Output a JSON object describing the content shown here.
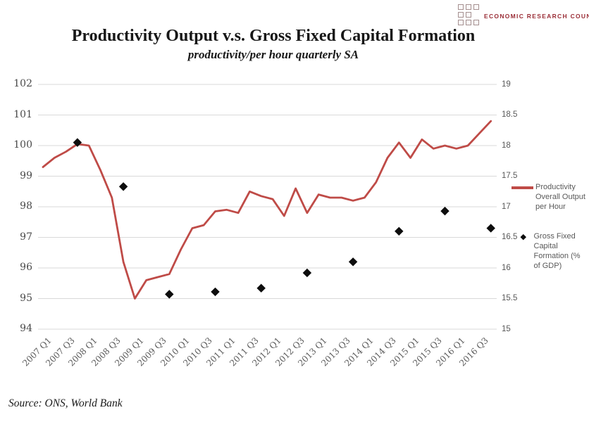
{
  "logo": {
    "text": "ECONOMIC RESEARCH COUNCIL",
    "brand_color": "#9a2d36"
  },
  "title": "Productivity Output v.s. Gross Fixed Capital Formation",
  "subtitle": "productivity/per hour quarterly SA",
  "source": "Source: ONS, World Bank",
  "legend": {
    "items": [
      {
        "label": "Productivity Overall Output per Hour",
        "swatch": "red-line"
      },
      {
        "label": "Gross Fixed Capital Formation (% of GDP)",
        "swatch": "black-diamond"
      }
    ]
  },
  "chart_data": {
    "type": "line",
    "title": "Productivity Output v.s. Gross Fixed Capital Formation",
    "subtitle": "productivity/per hour quarterly SA",
    "grid": true,
    "legend_position": "right",
    "x_categories": [
      "2007 Q1",
      "2007 Q2",
      "2007 Q3",
      "2007 Q4",
      "2008 Q1",
      "2008 Q2",
      "2008 Q3",
      "2008 Q4",
      "2009 Q1",
      "2009 Q2",
      "2009 Q3",
      "2009 Q4",
      "2010 Q1",
      "2010 Q2",
      "2010 Q3",
      "2010 Q4",
      "2011 Q1",
      "2011 Q2",
      "2011 Q3",
      "2011 Q4",
      "2012 Q1",
      "2012 Q2",
      "2012 Q3",
      "2012 Q4",
      "2013 Q1",
      "2013 Q2",
      "2013 Q3",
      "2013 Q4",
      "2014 Q1",
      "2014 Q2",
      "2014 Q3",
      "2014 Q4",
      "2015 Q1",
      "2015 Q2",
      "2015 Q3",
      "2015 Q4",
      "2016 Q1",
      "2016 Q2",
      "2016 Q3",
      "2016 Q4"
    ],
    "x_tick_labels": [
      "2007 Q1",
      "2007 Q3",
      "2008 Q1",
      "2008 Q3",
      "2009 Q1",
      "2009 Q3",
      "2010 Q1",
      "2010 Q3",
      "2011 Q1",
      "2011 Q3",
      "2012 Q1",
      "2012 Q3",
      "2013 Q1",
      "2013 Q3",
      "2014 Q1",
      "2014 Q3",
      "2015 Q1",
      "2015 Q3",
      "2016 Q1",
      "2016 Q3"
    ],
    "left_axis": {
      "min": 94,
      "max": 102,
      "step": 1,
      "ticks": [
        "102",
        "101",
        "100",
        "99",
        "98",
        "97",
        "96",
        "95",
        "94"
      ]
    },
    "right_axis": {
      "min": 15,
      "max": 19,
      "step": 0.5,
      "ticks": [
        "19",
        "18.5",
        "18",
        "17.5",
        "17",
        "16.5",
        "16",
        "15.5",
        "15"
      ]
    },
    "series": [
      {
        "name": "Productivity Overall Output per Hour",
        "type": "line",
        "axis": "left",
        "color": "#bf4b47",
        "values": [
          99.3,
          99.6,
          99.8,
          100.05,
          100.0,
          99.2,
          98.3,
          96.2,
          95.0,
          95.6,
          95.7,
          95.8,
          96.6,
          97.3,
          97.4,
          97.85,
          97.9,
          97.8,
          98.5,
          98.35,
          98.25,
          97.7,
          98.6,
          97.8,
          98.4,
          98.3,
          98.3,
          98.2,
          98.3,
          98.8,
          99.6,
          100.1,
          99.6,
          100.2,
          99.9,
          100.0,
          99.9,
          100.0,
          100.4,
          100.8
        ]
      },
      {
        "name": "Gross Fixed Capital Formation (% of GDP)",
        "type": "scatter",
        "marker": "diamond",
        "axis": "right",
        "color": "#0d0d0d",
        "points": [
          {
            "x": "2007 Q4",
            "value": 18.05
          },
          {
            "x": "2008 Q4",
            "value": 17.33
          },
          {
            "x": "2009 Q4",
            "value": 15.57
          },
          {
            "x": "2010 Q4",
            "value": 15.61
          },
          {
            "x": "2011 Q4",
            "value": 15.67
          },
          {
            "x": "2012 Q4",
            "value": 15.92
          },
          {
            "x": "2013 Q4",
            "value": 16.1
          },
          {
            "x": "2014 Q4",
            "value": 16.6
          },
          {
            "x": "2015 Q4",
            "value": 16.93
          },
          {
            "x": "2016 Q4",
            "value": 16.65
          }
        ]
      }
    ]
  }
}
